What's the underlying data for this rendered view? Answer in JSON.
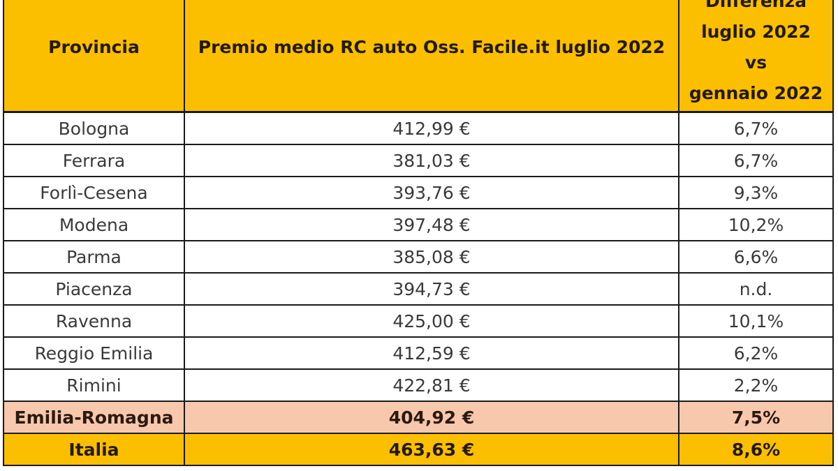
{
  "table": {
    "headers": {
      "province": "Provincia",
      "premium": "Premio medio RC auto Oss. Facile.it luglio 2022",
      "diff_lines": [
        "Differenza",
        "luglio 2022",
        "vs",
        "gennaio 2022"
      ]
    },
    "rows": [
      {
        "province": "Bologna",
        "premium": "412,99 €",
        "diff": "6,7%"
      },
      {
        "province": "Ferrara",
        "premium": "381,03 €",
        "diff": "6,7%"
      },
      {
        "province": "Forlì-Cesena",
        "premium": "393,76 €",
        "diff": "9,3%"
      },
      {
        "province": "Modena",
        "premium": "397,48 €",
        "diff": "10,2%"
      },
      {
        "province": "Parma",
        "premium": "385,08 €",
        "diff": "6,6%"
      },
      {
        "province": "Piacenza",
        "premium": "394,73 €",
        "diff": "n.d."
      },
      {
        "province": "Ravenna",
        "premium": "425,00 €",
        "diff": "10,1%"
      },
      {
        "province": "Reggio Emilia",
        "premium": "412,59 €",
        "diff": "6,2%"
      },
      {
        "province": "Rimini",
        "premium": "422,81 €",
        "diff": "2,2%"
      }
    ],
    "region": {
      "province": "Emilia-Romagna",
      "premium": "404,92 €",
      "diff": "7,5%"
    },
    "nation": {
      "province": "Italia",
      "premium": "463,63 €",
      "diff": "8,6%"
    }
  },
  "colors": {
    "header_bg": "#fcbf00",
    "region_bg": "#f8c8ac",
    "nation_bg": "#fcbf00",
    "border": "#1a1a1a"
  }
}
